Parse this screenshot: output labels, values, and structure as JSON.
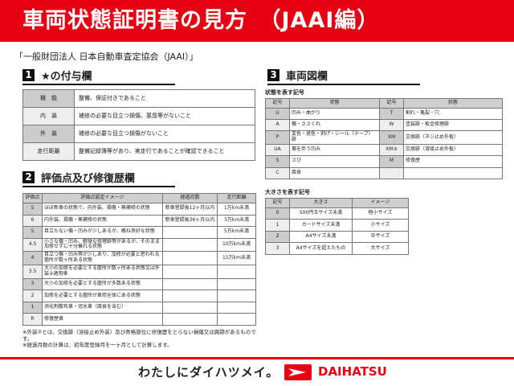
{
  "header": {
    "title": "車両状態証明書の見方　（JAAI編）"
  },
  "subtitle": "「一般財団法人 日本自動車査定協会（JAAI）」",
  "section1": {
    "num": "1",
    "title": "★の付与欄",
    "rows": [
      [
        "機　能",
        "整備、保証付きであること"
      ],
      [
        "内　装",
        "補修の必要な目立つ損傷、悪臭等がないこと"
      ],
      [
        "外　装",
        "補修の必要な目立つ損傷がないこと"
      ],
      [
        "走行距離",
        "整備記録簿等があり、実走行であることが確認できること"
      ]
    ]
  },
  "section2": {
    "num": "2",
    "title": "評価点及び修復歴欄",
    "headers": [
      "評価点",
      "評価点設定イメージ",
      "経過月数",
      "走行距離"
    ],
    "rows": [
      [
        "S",
        "ほぼ新車の状態で、内外装、損傷・無補修の状態",
        "新車登録後12ヶ月以内",
        "1万km未満"
      ],
      [
        "6",
        "内外装、損傷・無補修の状態",
        "新車登録後36ヶ月以内",
        "3万km未満"
      ],
      [
        "5",
        "目立たない傷・凹みが少しあるが、概ね良好な状態",
        "",
        "5万km未満"
      ],
      [
        "4.5",
        "小さな傷・凹み、軽微な修理跡等があるが、そのまま加修せずに十分乗れる状態",
        "",
        "10万km未満"
      ],
      [
        "4",
        "目立つ傷・凹み等が少しあり、加修が必要と思われる箇所が数ヶ所ある状態",
        "",
        "15万km未満"
      ],
      [
        "3.5",
        "大小の加修を必要とする箇所が数ヶ所ある状態又は外装②適用車",
        "",
        ""
      ],
      [
        "3",
        "大小の加修を必要とする箇所が多数ある状態",
        "",
        ""
      ],
      [
        "2",
        "加修を必要とする箇所が車両全体にある状態",
        "",
        ""
      ],
      [
        "1",
        "消化剤散布車・冠水車（腐食を含む）",
        "",
        ""
      ],
      [
        "R",
        "修復歴車",
        "",
        ""
      ]
    ],
    "notes": [
      "※外装②とは、交換跡（溶接止め外装）及び骨格部位に修復歴をとらない損傷又は腐跡があるものです。",
      "※経過月数の計算は、初年度登録月を一ヶ月として計算します。"
    ]
  },
  "section3": {
    "num": "3",
    "title": "車両図欄",
    "state_label": "状態を表す記号",
    "state_headers": [
      "記号",
      "状態",
      "記号",
      "状態"
    ],
    "state_rows": [
      [
        "U",
        "凹み・曲がり",
        "T",
        "割れ・亀裂・穴"
      ],
      [
        "A",
        "傷・ささくれ",
        "W",
        "塗装跡・板金修理跡"
      ],
      [
        "P",
        "変色・退色・剥げ・シール（テープ）跡",
        "XM",
        "交換跡（ネジ止め外板）"
      ],
      [
        "UA",
        "傷を伴う凹み",
        "XM②",
        "交換跡（溶接止め外板）"
      ],
      [
        "S",
        "さび",
        "M",
        "修復歴"
      ],
      [
        "C",
        "腐食",
        "",
        ""
      ]
    ],
    "size_label": "大きさを表す記号",
    "size_headers": [
      "記号",
      "大きさ",
      "イメージ"
    ],
    "size_rows": [
      [
        "0",
        "500円玉サイズ未満",
        "極小サイズ"
      ],
      [
        "1",
        "カードサイズ未満",
        "小サイズ"
      ],
      [
        "2",
        "A4サイズ未満",
        "中サイズ"
      ],
      [
        "3",
        "A4サイズを超えたもの",
        "大サイズ"
      ]
    ]
  },
  "footer": {
    "slogan": "わたしにダイハツメイ。",
    "brand": "DAIHATSU",
    "brand_color": "#e60012"
  }
}
